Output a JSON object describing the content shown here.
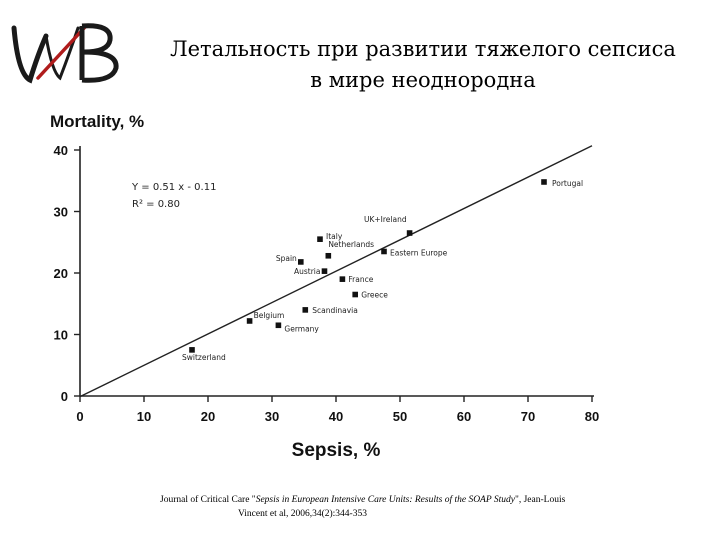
{
  "logo": {
    "text": "WB",
    "colors": {
      "main": "#1a1a1a",
      "accent": "#b01c1c"
    }
  },
  "header": {
    "title_line1": "Летальность при развитии тяжелого сепсиса",
    "title_line2": "в мире неоднородна"
  },
  "source": {
    "line1_prefix": "Journal of Critical Care \"",
    "line1_italic": "Sepsis in European Intensive Care Units: Results of the SOAP Study",
    "line1_suffix": "\", Jean-Louis",
    "line2": "Vincent et al, 2006,34(2):344-353"
  },
  "chart_data": {
    "type": "scatter",
    "ylabel": "Mortality, %",
    "xlabel": "Sepsis, %",
    "xlim": [
      0,
      80
    ],
    "ylim": [
      0,
      40
    ],
    "xticks": [
      0,
      10,
      20,
      30,
      40,
      50,
      60,
      70,
      80
    ],
    "yticks": [
      0,
      10,
      20,
      30,
      40
    ],
    "grid": false,
    "regression": {
      "slope": 0.51,
      "intercept": -0.11,
      "equation": "Y = 0.51 x - 0.11",
      "r2": "R² = 0.80"
    },
    "points": [
      {
        "label": "Portugal",
        "x": 72.5,
        "y": 34.8
      },
      {
        "label": "UK+Ireland",
        "x": 51.5,
        "y": 26.5
      },
      {
        "label": "Italy",
        "x": 37.5,
        "y": 25.5
      },
      {
        "label": "Netherlands",
        "x": 38.8,
        "y": 22.8
      },
      {
        "label": "Eastern Europe",
        "x": 47.5,
        "y": 23.5
      },
      {
        "label": "Spain",
        "x": 34.5,
        "y": 21.8
      },
      {
        "label": "Austria",
        "x": 38.2,
        "y": 20.3
      },
      {
        "label": "France",
        "x": 41.0,
        "y": 19.0
      },
      {
        "label": "Greece",
        "x": 43.0,
        "y": 16.5
      },
      {
        "label": "Scandinavia",
        "x": 35.2,
        "y": 14.0
      },
      {
        "label": "Belgium",
        "x": 26.5,
        "y": 12.2
      },
      {
        "label": "Germany",
        "x": 31.0,
        "y": 11.5
      },
      {
        "label": "Switzerland",
        "x": 17.5,
        "y": 7.5
      }
    ]
  }
}
